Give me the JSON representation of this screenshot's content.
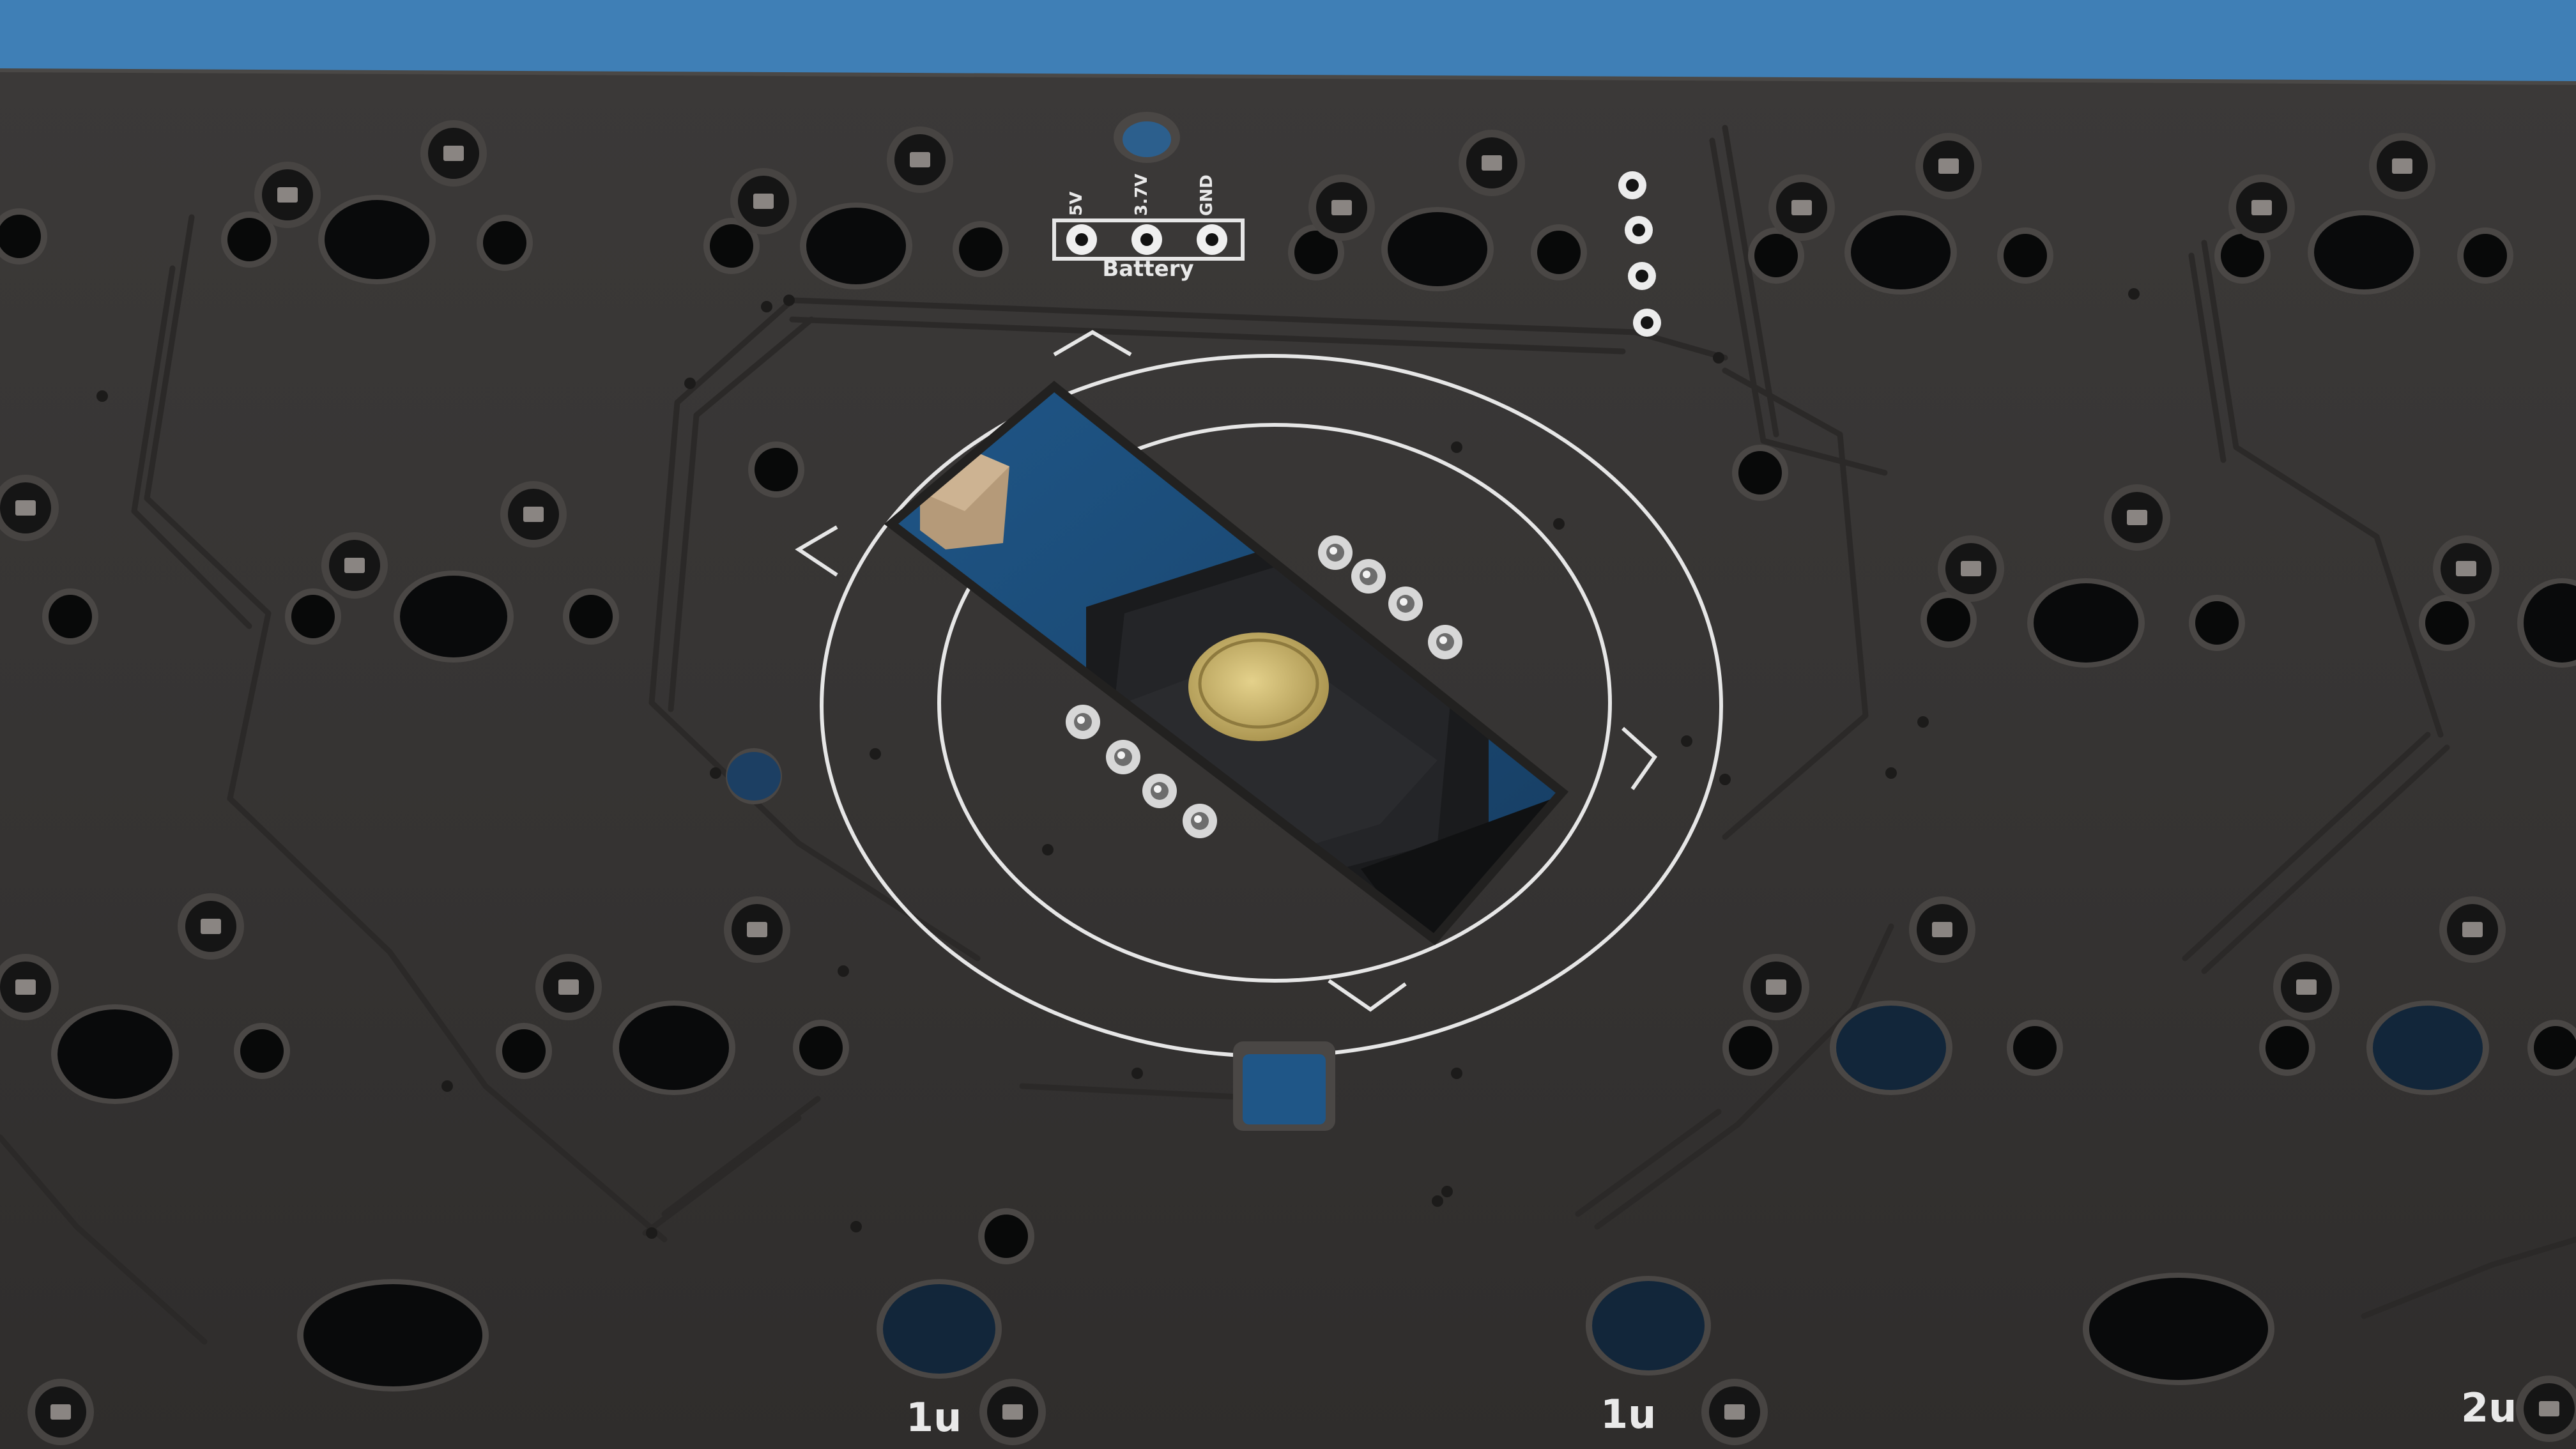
{
  "photo": {
    "colors": {
      "background": "#3f7fb6",
      "pcb": "#373534",
      "pcb_shade": "#2d2b2a",
      "silkscreen": "#e9e9e9",
      "hole": "#090a0b",
      "hole_rim": "#4a4745",
      "copper_pad": "#c9b36a",
      "cutout_blue": "#1d4f7d",
      "switch_body": "#1e1f21",
      "trace": "#2f2d2c"
    },
    "battery_header": {
      "title": "Battery",
      "pins": [
        "5V",
        "3.7V",
        "GND"
      ]
    },
    "key_size_labels": [
      "1u",
      "1u",
      "2u"
    ]
  }
}
